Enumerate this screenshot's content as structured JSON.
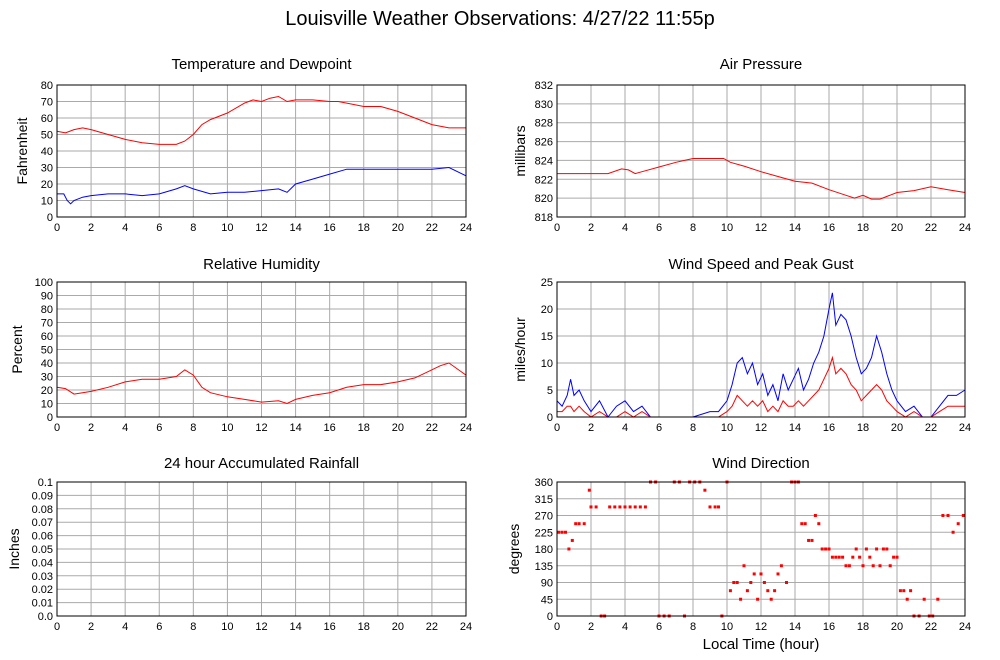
{
  "title": "Louisville Weather Observations: 4/27/22 11:55p",
  "x_axis_label": "Local Time (hour)",
  "colors": {
    "red": "#ff0000",
    "blue": "#0000ff",
    "grid": "#aaaaaa"
  },
  "chart_data": [
    {
      "id": "temp",
      "type": "line",
      "title": "Temperature and Dewpoint",
      "ylabel": "Fahrenheit",
      "xlim": [
        0,
        24
      ],
      "ylim": [
        0,
        80
      ],
      "yticks": [
        0,
        10,
        20,
        30,
        40,
        50,
        60,
        70,
        80
      ],
      "xticks": [
        0,
        2,
        4,
        6,
        8,
        10,
        12,
        14,
        16,
        18,
        20,
        22,
        24
      ],
      "grid": true,
      "series": [
        {
          "color": "#ff0000",
          "x": [
            0,
            0.5,
            1,
            1.5,
            2,
            3,
            4,
            5,
            6,
            7,
            7.5,
            8,
            8.5,
            9,
            10,
            11,
            11.5,
            12,
            12.5,
            13,
            13.5,
            14,
            15,
            16,
            16.5,
            17,
            18,
            19,
            20,
            21,
            22,
            23,
            24
          ],
          "y": [
            52,
            51,
            53,
            54,
            53,
            50,
            47,
            45,
            44,
            44,
            46,
            50,
            56,
            59,
            63,
            69,
            71,
            70,
            72,
            73,
            70,
            71,
            71,
            70,
            70,
            69,
            67,
            67,
            64,
            60,
            56,
            54,
            54
          ]
        },
        {
          "color": "#0000ff",
          "x": [
            0,
            0.4,
            0.6,
            0.8,
            1,
            1.5,
            2,
            3,
            4,
            5,
            6,
            7,
            7.5,
            8,
            9,
            10,
            11,
            12,
            13,
            13.5,
            14,
            15,
            16,
            17,
            18,
            19,
            20,
            21,
            22,
            23,
            24
          ],
          "y": [
            14,
            14,
            10,
            8,
            10,
            12,
            13,
            14,
            14,
            13,
            14,
            17,
            19,
            17,
            14,
            15,
            15,
            16,
            17,
            15,
            20,
            23,
            26,
            29,
            29,
            29,
            29,
            29,
            29,
            30,
            25
          ]
        }
      ]
    },
    {
      "id": "pressure",
      "type": "line",
      "title": "Air Pressure",
      "ylabel": "millibars",
      "xlim": [
        0,
        24
      ],
      "ylim": [
        818,
        832
      ],
      "yticks": [
        818,
        820,
        822,
        824,
        826,
        828,
        830,
        832
      ],
      "xticks": [
        0,
        2,
        4,
        6,
        8,
        10,
        12,
        14,
        16,
        18,
        20,
        22,
        24
      ],
      "grid": true,
      "series": [
        {
          "color": "#ff0000",
          "x": [
            0,
            1,
            2,
            3,
            3.8,
            4.2,
            4.6,
            5,
            6,
            7,
            7.5,
            8,
            9,
            9.8,
            10.2,
            11,
            12,
            13,
            14,
            15,
            16,
            17,
            17.5,
            18,
            18.5,
            19,
            20,
            21,
            22,
            23,
            24
          ],
          "y": [
            822.6,
            822.6,
            822.6,
            822.6,
            823.1,
            823.0,
            822.6,
            822.8,
            823.3,
            823.8,
            824.0,
            824.2,
            824.2,
            824.2,
            823.8,
            823.4,
            822.8,
            822.3,
            821.8,
            821.6,
            820.9,
            820.3,
            820.0,
            820.3,
            819.9,
            819.9,
            820.6,
            820.8,
            821.2,
            820.9,
            820.6
          ]
        }
      ]
    },
    {
      "id": "humidity",
      "type": "line",
      "title": "Relative Humidity",
      "ylabel": "Percent",
      "xlim": [
        0,
        24
      ],
      "ylim": [
        0,
        100
      ],
      "yticks": [
        0,
        10,
        20,
        30,
        40,
        50,
        60,
        70,
        80,
        90,
        100
      ],
      "xticks": [
        0,
        2,
        4,
        6,
        8,
        10,
        12,
        14,
        16,
        18,
        20,
        22,
        24
      ],
      "grid": true,
      "series": [
        {
          "color": "#ff0000",
          "x": [
            0,
            0.5,
            1,
            1.5,
            2,
            3,
            4,
            5,
            6,
            7,
            7.5,
            8,
            8.5,
            9,
            10,
            11,
            12,
            13,
            13.5,
            14,
            15,
            16,
            17,
            18,
            19,
            20,
            21,
            22,
            22.5,
            23,
            24
          ],
          "y": [
            22,
            21,
            17,
            18,
            19,
            22,
            26,
            28,
            28,
            30,
            35,
            31,
            22,
            18,
            15,
            13,
            11,
            12,
            10,
            13,
            16,
            18,
            22,
            24,
            24,
            26,
            29,
            35,
            38,
            40,
            31
          ]
        }
      ]
    },
    {
      "id": "wind",
      "type": "line",
      "title": "Wind Speed and Peak Gust",
      "ylabel": "miles/hour",
      "xlim": [
        0,
        24
      ],
      "ylim": [
        0,
        25
      ],
      "yticks": [
        0,
        5,
        10,
        15,
        20,
        25
      ],
      "xticks": [
        0,
        2,
        4,
        6,
        8,
        10,
        12,
        14,
        16,
        18,
        20,
        22,
        24
      ],
      "grid": true,
      "series": [
        {
          "color": "#0000ff",
          "x": [
            0,
            0.3,
            0.6,
            0.8,
            1,
            1.3,
            1.6,
            2,
            2.5,
            3,
            3.5,
            4,
            4.5,
            5,
            5.5,
            6,
            7,
            8,
            9,
            9.5,
            10,
            10.3,
            10.6,
            10.9,
            11.2,
            11.5,
            11.8,
            12.1,
            12.4,
            12.7,
            13,
            13.3,
            13.6,
            13.9,
            14.2,
            14.5,
            14.8,
            15.1,
            15.4,
            15.7,
            16,
            16.2,
            16.4,
            16.7,
            17,
            17.3,
            17.6,
            17.9,
            18.2,
            18.5,
            18.8,
            19.1,
            19.4,
            19.7,
            20,
            20.5,
            21,
            21.5,
            22,
            22.5,
            23,
            23.5,
            24
          ],
          "y": [
            3,
            2,
            4,
            7,
            4,
            5,
            3,
            1,
            3,
            0,
            2,
            3,
            1,
            2,
            0,
            0,
            0,
            0,
            1,
            1,
            3,
            6,
            10,
            11,
            8,
            10,
            6,
            8,
            4,
            6,
            3,
            8,
            5,
            7,
            9,
            5,
            7,
            10,
            12,
            15,
            20,
            23,
            17,
            19,
            18,
            15,
            11,
            8,
            9,
            11,
            15,
            12,
            8,
            5,
            3,
            1,
            2,
            0,
            0,
            2,
            4,
            4,
            5
          ]
        },
        {
          "color": "#ff0000",
          "x": [
            0,
            0.3,
            0.6,
            0.8,
            1,
            1.3,
            1.6,
            2,
            2.5,
            3,
            3.5,
            4,
            4.5,
            5,
            5.5,
            6,
            7,
            8,
            9,
            9.5,
            10,
            10.3,
            10.6,
            10.9,
            11.2,
            11.5,
            11.8,
            12.1,
            12.4,
            12.7,
            13,
            13.3,
            13.6,
            13.9,
            14.2,
            14.5,
            14.8,
            15.1,
            15.4,
            15.7,
            16,
            16.2,
            16.4,
            16.7,
            17,
            17.3,
            17.6,
            17.9,
            18.2,
            18.5,
            18.8,
            19.1,
            19.4,
            19.7,
            20,
            20.5,
            21,
            21.5,
            22,
            22.5,
            23,
            23.5,
            24
          ],
          "y": [
            1,
            1,
            2,
            2,
            1,
            2,
            1,
            0,
            1,
            0,
            0,
            1,
            0,
            1,
            0,
            0,
            0,
            0,
            0,
            0,
            1,
            2,
            4,
            3,
            2,
            3,
            2,
            3,
            1,
            2,
            1,
            3,
            2,
            2,
            3,
            2,
            3,
            4,
            5,
            7,
            9,
            11,
            8,
            9,
            8,
            6,
            5,
            3,
            4,
            5,
            6,
            5,
            3,
            2,
            1,
            0,
            1,
            0,
            0,
            1,
            2,
            2,
            2
          ]
        }
      ]
    },
    {
      "id": "rain",
      "type": "line",
      "title": "24 hour Accumulated Rainfall",
      "ylabel": "Inches",
      "xlim": [
        0,
        24
      ],
      "ylim": [
        0,
        0.1
      ],
      "yticks": [
        0.0,
        0.01,
        0.02,
        0.03,
        0.04,
        0.05,
        0.06,
        0.07,
        0.08,
        0.09,
        0.1
      ],
      "ytick_labels": [
        "0.0",
        "0.01",
        "0.02",
        "0.03",
        "0.04",
        "0.05",
        "0.06",
        "0.07",
        "0.08",
        "0.09",
        "0.1"
      ],
      "xticks": [
        0,
        2,
        4,
        6,
        8,
        10,
        12,
        14,
        16,
        18,
        20,
        22,
        24
      ],
      "grid": true,
      "series": [
        {
          "color": "#ff0000",
          "x": [
            0,
            24
          ],
          "y": [
            0,
            0
          ]
        }
      ]
    },
    {
      "id": "direction",
      "type": "scatter",
      "title": "Wind Direction",
      "ylabel": "degrees",
      "xlim": [
        0,
        24
      ],
      "ylim": [
        0,
        360
      ],
      "yticks": [
        0,
        45,
        90,
        135,
        180,
        225,
        270,
        315,
        360
      ],
      "xticks": [
        0,
        2,
        4,
        6,
        8,
        10,
        12,
        14,
        16,
        18,
        20,
        22,
        24
      ],
      "grid": true,
      "series": [
        {
          "color": "#ff0000",
          "x": [
            0.1,
            0.3,
            0.5,
            0.7,
            0.9,
            1.1,
            1.3,
            1.6,
            1.9,
            2.0,
            2.3,
            2.6,
            2.8,
            3.1,
            3.4,
            3.7,
            4.0,
            4.3,
            4.6,
            4.9,
            5.2,
            5.5,
            5.8,
            6.0,
            6.3,
            6.6,
            6.9,
            7.2,
            7.5,
            7.8,
            8.1,
            8.4,
            8.7,
            9.0,
            9.3,
            9.5,
            9.7,
            10.0,
            10.2,
            10.4,
            10.6,
            10.8,
            11.0,
            11.2,
            11.4,
            11.6,
            11.8,
            12.0,
            12.2,
            12.4,
            12.6,
            12.8,
            13.0,
            13.2,
            13.5,
            13.8,
            14.0,
            14.2,
            14.4,
            14.6,
            14.8,
            15.0,
            15.2,
            15.4,
            15.6,
            15.8,
            16.0,
            16.2,
            16.4,
            16.6,
            16.8,
            17.0,
            17.2,
            17.4,
            17.6,
            17.8,
            18.0,
            18.2,
            18.4,
            18.6,
            18.8,
            19.0,
            19.2,
            19.4,
            19.6,
            19.8,
            20.0,
            20.2,
            20.4,
            20.6,
            20.8,
            21.0,
            21.3,
            21.6,
            21.9,
            22.1,
            22.4,
            22.7,
            23.0,
            23.3,
            23.6,
            23.9
          ],
          "y": [
            225,
            225,
            225,
            180,
            203,
            248,
            248,
            248,
            338,
            293,
            293,
            0,
            0,
            293,
            293,
            293,
            293,
            293,
            293,
            293,
            293,
            360,
            360,
            0,
            0,
            0,
            360,
            360,
            0,
            360,
            360,
            360,
            338,
            293,
            293,
            293,
            0,
            360,
            68,
            90,
            90,
            45,
            135,
            68,
            90,
            113,
            45,
            113,
            90,
            68,
            45,
            68,
            113,
            135,
            90,
            360,
            360,
            360,
            248,
            248,
            203,
            203,
            270,
            248,
            180,
            180,
            180,
            158,
            158,
            158,
            158,
            135,
            135,
            158,
            180,
            158,
            135,
            180,
            158,
            135,
            180,
            135,
            180,
            180,
            135,
            158,
            158,
            68,
            68,
            45,
            68,
            0,
            0,
            45,
            0,
            0,
            45,
            270,
            270,
            225,
            248,
            270
          ]
        }
      ]
    }
  ]
}
